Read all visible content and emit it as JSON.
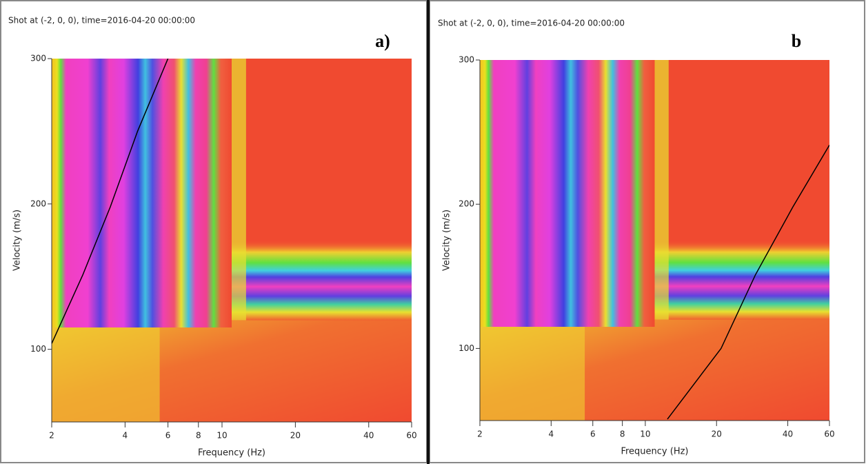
{
  "chart_data": [
    {
      "type": "line",
      "title": "Shot at (-2, 0, 0), time=2016-04-20 00:00:00",
      "annotation": "a)",
      "x_label": "Frequency (Hz)",
      "y_label": "Velocity (m/s)",
      "log_x": true,
      "xlim": [
        2,
        60
      ],
      "ylim": [
        50,
        300
      ],
      "xticks": [
        2,
        4,
        6,
        8,
        10,
        20,
        40,
        60
      ],
      "yticks": [
        100,
        200,
        300
      ],
      "series": [
        {
          "color": "#000000",
          "x": [
            2,
            2.68,
            3.48,
            4.5,
            6
          ],
          "values": [
            104,
            151,
            198,
            250,
            300
          ]
        }
      ]
    },
    {
      "type": "line",
      "title": "Shot at (-2, 0, 0), time=2016-04-20 00:00:00",
      "annotation": "b",
      "x_label": "Frequency (Hz)",
      "y_label": "Velocity (m/s)",
      "log_x": true,
      "xlim": [
        2,
        60
      ],
      "ylim": [
        50,
        300
      ],
      "xticks": [
        2,
        4,
        6,
        8,
        10,
        20,
        40,
        60
      ],
      "yticks": [
        100,
        200,
        300
      ],
      "series": [
        {
          "color": "#000000",
          "x": [
            12.4,
            20.9,
            29.2,
            42,
            60
          ],
          "values": [
            51,
            100,
            151,
            198,
            241
          ]
        }
      ]
    }
  ]
}
